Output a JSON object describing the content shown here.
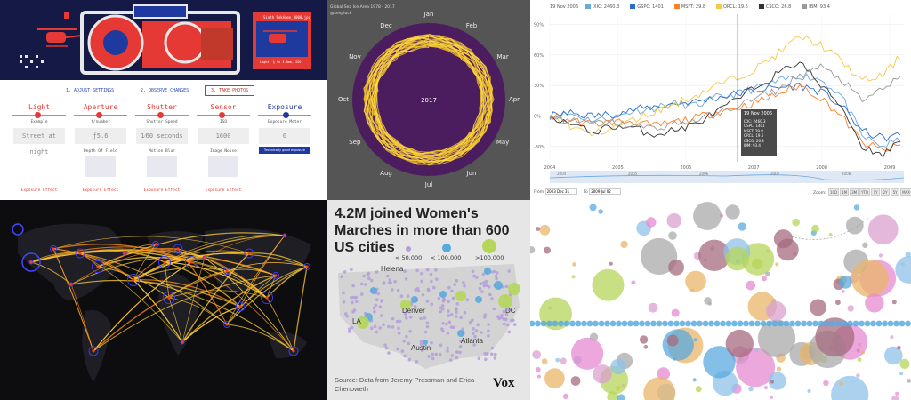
{
  "panel1": {
    "steps": [
      "1. ADJUST SETTINGS",
      "2. OBSERVE CHANGES",
      "3. TAKE PHOTOS"
    ],
    "camera_caption": "Sixth Pokémon_0000.jpg",
    "camera_sub": "Light, ¼ to 3.5mm, ISO",
    "controls": [
      {
        "title": "Light",
        "sub": "Example",
        "value": "Street at night",
        "sub2": "",
        "effect": "Exposure Effect",
        "knob": 0.45
      },
      {
        "title": "Aperture",
        "sub": "f/number",
        "value": "ƒ5.6",
        "sub2": "Depth Of Field",
        "effect": "Exposure Effect",
        "knob": 0.45
      },
      {
        "title": "Shutter",
        "sub": "Shutter Speed",
        "value": "1⁄60 seconds",
        "sub2": "Motion Blur",
        "effect": "Exposure Effect",
        "knob": 0.45
      },
      {
        "title": "Sensor",
        "sub": "ISO",
        "value": "1600",
        "sub2": "Image Noise",
        "effect": "Exposure Effect",
        "knob": 0.45
      },
      {
        "title": "Exposure",
        "sub": "Exposure Meter",
        "value": "0",
        "sub2": "",
        "effect": "",
        "knob": 0.5,
        "button": "Technically good exposure"
      }
    ]
  },
  "panel2": {
    "title": "Global Sea Ice Area 1978 - 2017",
    "subtitle": "@kevpluck",
    "year": "2017",
    "months": [
      "Jan",
      "Feb",
      "Mar",
      "Apr",
      "May",
      "Jun",
      "Jul",
      "Aug",
      "Sep",
      "Oct",
      "Nov",
      "Dec"
    ]
  },
  "chart_data": {
    "type": "line",
    "header_date": "19 Nov 2006",
    "legend": [
      {
        "name": "IXIC: 2460.3",
        "color": "#6aa8e0"
      },
      {
        "name": "GSPC: 1401",
        "color": "#2d6fc6"
      },
      {
        "name": "MSFT: 29.8",
        "color": "#ff7f2a"
      },
      {
        "name": "ORCL: 19.6",
        "color": "#f7c948"
      },
      {
        "name": "CSCO: 26.8",
        "color": "#333333"
      },
      {
        "name": "IBM: 93.4",
        "color": "#999999"
      }
    ],
    "x_ticks": [
      "2004",
      "2005",
      "2006",
      "2007",
      "2008",
      "2009"
    ],
    "y_ticks": [
      "90%",
      "60%",
      "30%",
      "0%",
      "-30%"
    ],
    "ylim": [
      -45,
      100
    ],
    "series": [
      {
        "name": "IXIC",
        "color": "#6aa8e0",
        "values": [
          0,
          2,
          -4,
          -2,
          5,
          8,
          12,
          10,
          18,
          22,
          28,
          34,
          40,
          36,
          20,
          -20,
          -30,
          -22
        ]
      },
      {
        "name": "GSPC",
        "color": "#2d6fc6",
        "values": [
          0,
          3,
          0,
          2,
          6,
          9,
          12,
          14,
          18,
          22,
          26,
          28,
          30,
          24,
          10,
          -15,
          -22,
          -18
        ]
      },
      {
        "name": "MSFT",
        "color": "#ff7f2a",
        "values": [
          0,
          -4,
          -8,
          -6,
          -5,
          -10,
          -6,
          -2,
          4,
          8,
          14,
          22,
          30,
          18,
          0,
          -26,
          -34,
          -28
        ]
      },
      {
        "name": "ORCL",
        "color": "#f7c948",
        "values": [
          0,
          -10,
          -18,
          -12,
          -4,
          4,
          12,
          20,
          30,
          38,
          48,
          62,
          78,
          70,
          54,
          34,
          40,
          62
        ]
      },
      {
        "name": "CSCO",
        "color": "#333333",
        "values": [
          0,
          -8,
          -16,
          -10,
          -12,
          -18,
          -14,
          -8,
          4,
          16,
          30,
          42,
          54,
          30,
          10,
          -30,
          -38,
          -20
        ]
      },
      {
        "name": "IBM",
        "color": "#999999",
        "values": [
          0,
          -5,
          -8,
          -6,
          -10,
          -12,
          -8,
          -4,
          2,
          10,
          18,
          26,
          40,
          48,
          36,
          14,
          28,
          38
        ]
      }
    ],
    "tooltip": {
      "date": "19 Nov 2006",
      "rows": [
        "IXIC: 2460.3",
        "GSPC: 1401",
        "MSFT: 29.8",
        "ORCL: 19.6",
        "CSCO: 26.8",
        "IBM: 93.4"
      ]
    },
    "navigator_ticks": [
      "2004",
      "2005",
      "2006",
      "2007",
      "2008"
    ],
    "from_label": "From",
    "from_value": "2003 Dec 31",
    "to_label": "To",
    "to_value": "2009 Jul 02",
    "zoom_label": "Zoom:",
    "zoom_buttons": [
      "10D",
      "1M",
      "3M",
      "YTD",
      "1Y",
      "2Y",
      "5Y",
      "MAX"
    ]
  },
  "panel5": {
    "title": "4.2M joined Women's Marches in more than 600 US cities",
    "legend": [
      "< 50,000",
      "< 100,000",
      ">100,000"
    ],
    "source": "Source: Data from Jeremy Pressman and Erica Chenoweth",
    "logo": "Vox",
    "cities": [
      "Helena",
      "LA",
      "Denver",
      "DC",
      "Austin",
      "Atlanta"
    ],
    "colors": {
      "small": "#b39ddb",
      "medium": "#5aaadf",
      "large": "#b5d65a"
    }
  }
}
